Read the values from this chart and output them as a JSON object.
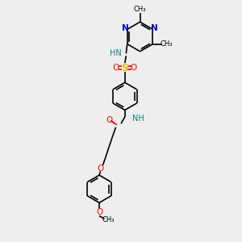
{
  "bg_color": "#eeeeee",
  "bond_color": "#000000",
  "N_color": "#0000cc",
  "O_color": "#ff0000",
  "S_color": "#cccc00",
  "NH_color": "#008080",
  "line_width": 1.2,
  "figsize": [
    3.0,
    3.0
  ],
  "dpi": 100,
  "xlim": [
    0,
    10
  ],
  "ylim": [
    0,
    10
  ]
}
